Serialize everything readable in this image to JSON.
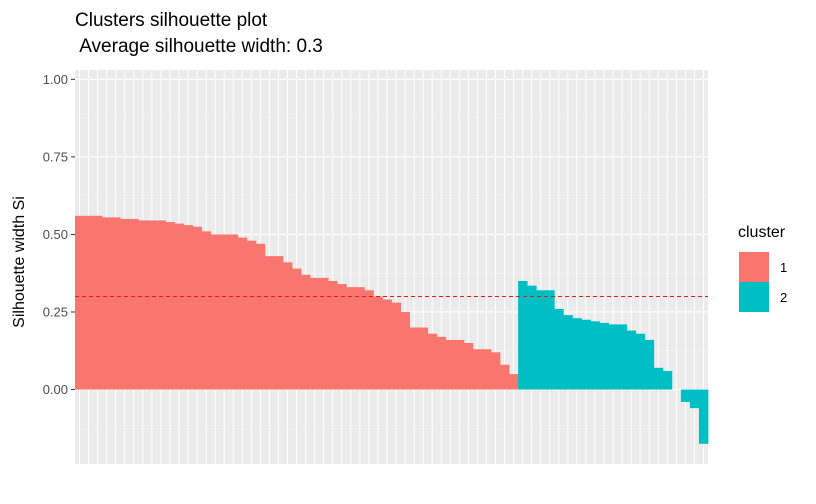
{
  "chart_data": {
    "type": "bar",
    "title": "Clusters silhouette plot",
    "subtitle": " Average silhouette width: 0.3",
    "xlabel": "",
    "ylabel": "Silhouette width Si",
    "ylim": [
      -0.24,
      1.03
    ],
    "yticks": [
      {
        "value": 0.0,
        "label": "0.00"
      },
      {
        "value": 0.25,
        "label": "0.25"
      },
      {
        "value": 0.5,
        "label": "0.50"
      },
      {
        "value": 0.75,
        "label": "0.75"
      },
      {
        "value": 1.0,
        "label": "1.00"
      }
    ],
    "average_line": 0.3,
    "grid": true,
    "legend": {
      "title": "cluster",
      "position": "right"
    },
    "series": [
      {
        "name": "1",
        "color": "#F8766D",
        "values": [
          0.56,
          0.56,
          0.56,
          0.555,
          0.555,
          0.55,
          0.55,
          0.545,
          0.545,
          0.545,
          0.54,
          0.535,
          0.53,
          0.525,
          0.51,
          0.5,
          0.5,
          0.5,
          0.49,
          0.48,
          0.47,
          0.43,
          0.43,
          0.41,
          0.39,
          0.37,
          0.36,
          0.36,
          0.35,
          0.34,
          0.33,
          0.33,
          0.32,
          0.3,
          0.29,
          0.28,
          0.25,
          0.2,
          0.2,
          0.18,
          0.17,
          0.16,
          0.16,
          0.15,
          0.13,
          0.13,
          0.12,
          0.08,
          0.05
        ]
      },
      {
        "name": "2",
        "color": "#00BFC4",
        "values": [
          0.35,
          0.335,
          0.32,
          0.32,
          0.26,
          0.24,
          0.23,
          0.225,
          0.22,
          0.215,
          0.21,
          0.21,
          0.19,
          0.18,
          0.16,
          0.07,
          0.06,
          0.0,
          -0.04,
          -0.06,
          -0.175
        ]
      }
    ]
  }
}
